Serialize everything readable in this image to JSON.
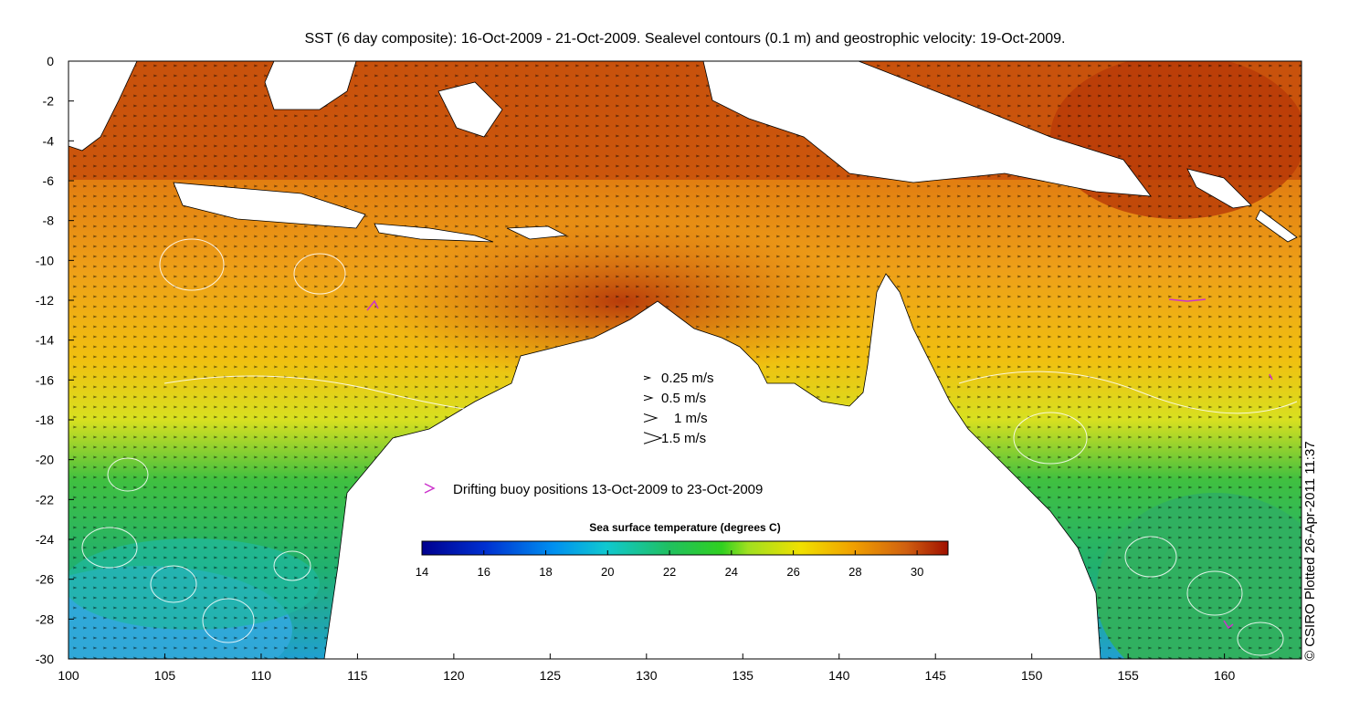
{
  "title": "SST (6 day composite): 16-Oct-2009 - 21-Oct-2009. Sealevel contours (0.1 m) and geostrophic velocity: 19-Oct-2009.",
  "credit": "© CSIRO Plotted 26-Apr-2011 11:37",
  "x_ticks": [
    "100",
    "105",
    "110",
    "115",
    "120",
    "125",
    "130",
    "135",
    "140",
    "145",
    "150",
    "155",
    "160"
  ],
  "y_ticks": [
    "0",
    "-2",
    "-4",
    "-6",
    "-8",
    "-10",
    "-12",
    "-14",
    "-16",
    "-18",
    "-20",
    "-22",
    "-24",
    "-26",
    "-28",
    "-30"
  ],
  "velocity_legend": [
    {
      "speed": 0.25,
      "label": "0.25 m/s"
    },
    {
      "speed": 0.5,
      "label": "0.5 m/s"
    },
    {
      "speed": 1,
      "label": "1 m/s"
    },
    {
      "speed": 1.5,
      "label": "1.5 m/s"
    }
  ],
  "buoy_legend": {
    "label": "Drifting buoy positions 13-Oct-2009 to 23-Oct-2009",
    "color": "#cc33cc"
  },
  "colorbar": {
    "title": "Sea surface temperature (degrees C)",
    "min": 14,
    "max": 31,
    "ticks": [
      "14",
      "16",
      "18",
      "20",
      "22",
      "24",
      "26",
      "28",
      "30"
    ]
  },
  "map": {
    "lon_range": [
      100,
      164
    ],
    "lat_range": [
      -30,
      0
    ]
  }
}
